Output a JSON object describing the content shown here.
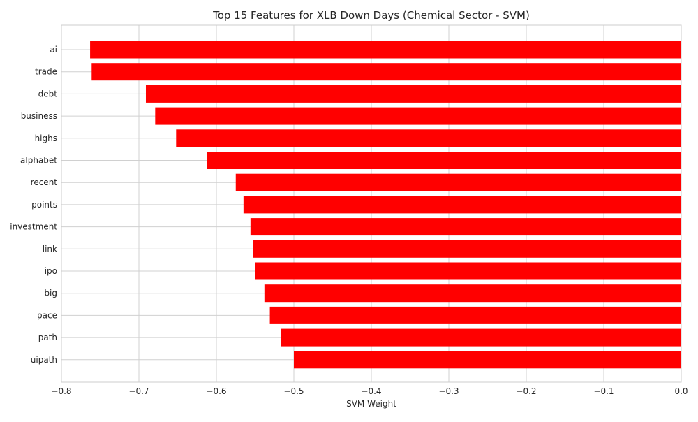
{
  "chart_data": {
    "type": "bar",
    "orientation": "horizontal",
    "title": "Top 15 Features for XLB Down Days (Chemical Sector - SVM)",
    "xlabel": "SVM Weight",
    "ylabel": "",
    "xlim": [
      -0.8,
      0.0
    ],
    "xticks": [
      -0.8,
      -0.7,
      -0.6,
      -0.5,
      -0.4,
      -0.3,
      -0.2,
      -0.1,
      0.0
    ],
    "xtick_labels": [
      "−0.8",
      "−0.7",
      "−0.6",
      "−0.5",
      "−0.4",
      "−0.3",
      "−0.2",
      "−0.1",
      "0.0"
    ],
    "categories": [
      "ai",
      "trade",
      "debt",
      "business",
      "highs",
      "alphabet",
      "recent",
      "points",
      "investment",
      "link",
      "ipo",
      "big",
      "pace",
      "path",
      "uipath"
    ],
    "values": [
      -0.763,
      -0.761,
      -0.691,
      -0.679,
      -0.652,
      -0.612,
      -0.575,
      -0.565,
      -0.556,
      -0.553,
      -0.55,
      -0.538,
      -0.531,
      -0.517,
      -0.5
    ],
    "bar_color": "#ff0000",
    "grid": true,
    "grid_color": "#d0d0d0",
    "spine_color": "#cccccc"
  }
}
